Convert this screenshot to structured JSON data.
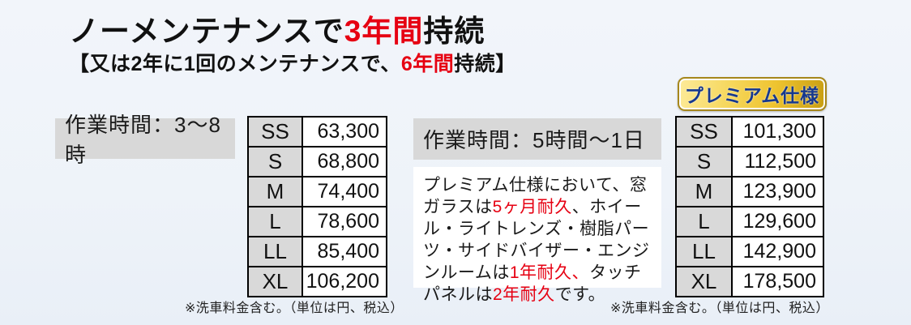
{
  "colors": {
    "background": "#f0f4f9",
    "accent_red": "#e60012",
    "label_gray": "#d8d8d8",
    "table_header_gray": "#d9d9d9",
    "badge_gold": "#eec32f",
    "badge_text_blue": "#16388e"
  },
  "header": {
    "title": {
      "pre": "ノーメンテナンスで",
      "highlight": "3年間",
      "post": "持続"
    },
    "subtitle": {
      "pre": "【又は2年に1回のメンテナンスで、",
      "highlight": "6年間",
      "post": "持続】"
    }
  },
  "standard_plan": {
    "work_time_label": "作業時間：3～8時",
    "price_table": {
      "rows": [
        [
          "SS",
          "63,300"
        ],
        [
          "S",
          "68,800"
        ],
        [
          "M",
          "74,400"
        ],
        [
          "L",
          "78,600"
        ],
        [
          "LL",
          "85,400"
        ],
        [
          "XL",
          "106,200"
        ]
      ]
    },
    "note": "※洗車料金含む。（単位は円、税込）"
  },
  "premium_plan": {
    "badge_label": "プレミアム仕様",
    "work_time_label": "作業時間：5時間～1日",
    "description_segments": [
      {
        "text": "プレミアム仕様において、窓ガラスは",
        "red": false
      },
      {
        "text": "5ヶ月耐久",
        "red": true
      },
      {
        "text": "、ホイール・ライトレンズ・樹脂パーツ・サイドバイザー・エンジンルームは",
        "red": false
      },
      {
        "text": "1年耐久、",
        "red": true
      },
      {
        "text": "タッチパネルは",
        "red": false
      },
      {
        "text": "2年耐久",
        "red": true
      },
      {
        "text": "です。",
        "red": false
      }
    ],
    "price_table": {
      "rows": [
        [
          "SS",
          "101,300"
        ],
        [
          "S",
          "112,500"
        ],
        [
          "M",
          "123,900"
        ],
        [
          "L",
          "129,600"
        ],
        [
          "LL",
          "142,900"
        ],
        [
          "XL",
          "178,500"
        ]
      ]
    },
    "note": "※洗車料金含む。（単位は円、税込）"
  }
}
